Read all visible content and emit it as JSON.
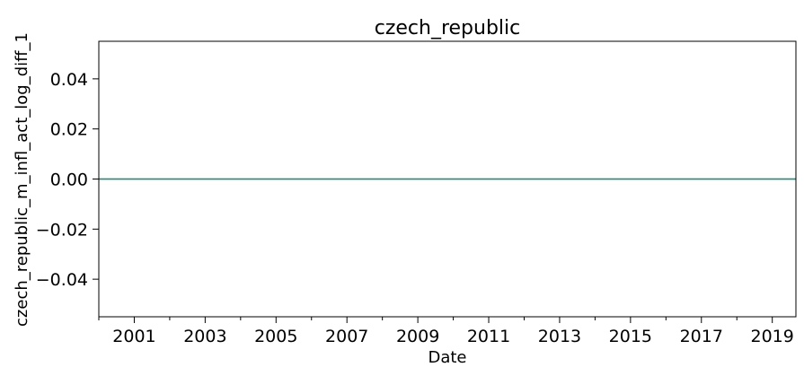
{
  "chart_data": {
    "type": "line",
    "title": "czech_republic",
    "xlabel": "Date",
    "ylabel": "czech_republic_m_infl_act_log_diff_1",
    "x_range": [
      "2000-01",
      "2019-09"
    ],
    "ylim": [
      -0.055,
      0.055
    ],
    "x_ticks": [
      "2001",
      "2003",
      "2005",
      "2007",
      "2009",
      "2011",
      "2013",
      "2015",
      "2017",
      "2019"
    ],
    "x_minor_ticks": [
      "2000",
      "2002",
      "2004",
      "2006",
      "2008",
      "2010",
      "2012",
      "2014",
      "2016",
      "2018"
    ],
    "y_ticks": [
      "0.04",
      "0.02",
      "0.00",
      "−0.02",
      "−0.04"
    ],
    "grid": false,
    "series": [
      {
        "color": "#1f77b4",
        "x": [
          "2000-01",
          "2019-09"
        ],
        "y": [
          0,
          0
        ]
      },
      {
        "color": "#2ca02c",
        "x": [
          "2000-01",
          "2019-09"
        ],
        "y": [
          0,
          0
        ]
      }
    ]
  }
}
